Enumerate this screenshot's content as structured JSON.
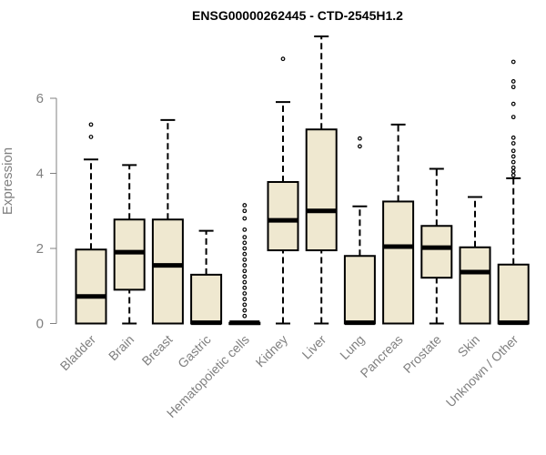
{
  "chart_data": {
    "type": "box",
    "title": "ENSG00000262445 - CTD-2545H1.2",
    "ylabel": "Expression",
    "xlabel": "",
    "ylim": [
      0,
      7.7
    ],
    "yticks": [
      0,
      2,
      4,
      6
    ],
    "box_fill": "#efe8d0",
    "categories": [
      "Bladder",
      "Brain",
      "Breast",
      "Gastric",
      "Hematopoietic cells",
      "Kidney",
      "Liver",
      "Lung",
      "Pancreas",
      "Prostate",
      "Skin",
      "Unknown / Other"
    ],
    "boxes": [
      {
        "min": 0,
        "q1": 0,
        "median": 0.72,
        "q3": 1.97,
        "max": 4.37,
        "outliers": [
          4.97,
          5.3
        ]
      },
      {
        "min": 0,
        "q1": 0.9,
        "median": 1.9,
        "q3": 2.77,
        "max": 4.22,
        "outliers": []
      },
      {
        "min": 0,
        "q1": 0,
        "median": 1.55,
        "q3": 2.77,
        "max": 5.42,
        "outliers": []
      },
      {
        "min": 0,
        "q1": 0,
        "median": 0.02,
        "q3": 1.3,
        "max": 2.47,
        "outliers": []
      },
      {
        "min": 0,
        "q1": 0,
        "median": 0.02,
        "q3": 0.02,
        "max": 0.05,
        "outliers": [
          0.2,
          0.35,
          0.5,
          0.65,
          0.8,
          0.95,
          1.1,
          1.25,
          1.4,
          1.55,
          1.7,
          1.85,
          2.0,
          2.15,
          2.3,
          2.5,
          2.8,
          3.0,
          3.15
        ]
      },
      {
        "min": 0,
        "q1": 1.95,
        "median": 2.75,
        "q3": 3.77,
        "max": 5.9,
        "outliers": [
          7.05
        ]
      },
      {
        "min": 0,
        "q1": 1.95,
        "median": 3.0,
        "q3": 5.17,
        "max": 7.65,
        "outliers": []
      },
      {
        "min": 0,
        "q1": 0,
        "median": 0.02,
        "q3": 1.8,
        "max": 3.12,
        "outliers": [
          4.72,
          4.93
        ]
      },
      {
        "min": 0,
        "q1": 0,
        "median": 2.05,
        "q3": 3.25,
        "max": 5.3,
        "outliers": []
      },
      {
        "min": 0,
        "q1": 1.22,
        "median": 2.02,
        "q3": 2.6,
        "max": 4.12,
        "outliers": []
      },
      {
        "min": 0,
        "q1": 0,
        "median": 1.37,
        "q3": 2.03,
        "max": 3.37,
        "outliers": []
      },
      {
        "min": 0,
        "q1": 0,
        "median": 0.02,
        "q3": 1.57,
        "max": 3.87,
        "outliers": [
          3.95,
          4.05,
          4.15,
          4.3,
          4.45,
          4.6,
          4.8,
          4.95,
          5.5,
          5.85,
          6.3,
          6.45,
          6.97
        ]
      }
    ]
  }
}
